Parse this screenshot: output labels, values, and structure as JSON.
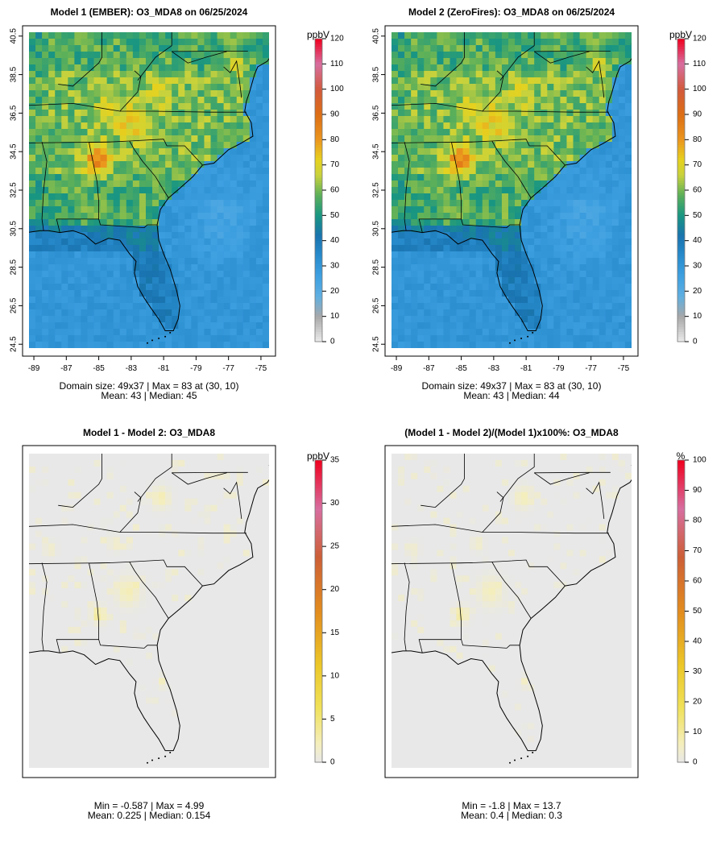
{
  "chart_data": [
    {
      "type": "heatmap",
      "title": "Model 1 (EMBER): O3_MDA8 on 06/25/2024",
      "colorbar": {
        "label": "ppbV",
        "ticks": [
          "0",
          "10",
          "20",
          "30",
          "40",
          "50",
          "60",
          "70",
          "80",
          "90",
          "100",
          "110",
          "120"
        ],
        "range": [
          0,
          120
        ],
        "palette": "ozone"
      },
      "xticks": [
        "-89",
        "-87",
        "-85",
        "-83",
        "-81",
        "-79",
        "-77",
        "-75"
      ],
      "yticks": [
        "24.5",
        "26.5",
        "28.5",
        "30.5",
        "32.5",
        "34.5",
        "36.5",
        "38.5",
        "40.5"
      ],
      "xlim": [
        -89.3,
        -74.5
      ],
      "ylim": [
        24.3,
        40.7
      ],
      "stats_line1": "Domain size: 49x37 | Max = 83 at (30, 10)",
      "stats_line2": "Mean: 43 |  Median: 45",
      "field": {
        "kind": "ozone",
        "seed": 11
      }
    },
    {
      "type": "heatmap",
      "title": "Model 2 (ZeroFires): O3_MDA8 on 06/25/2024",
      "colorbar": {
        "label": "ppbV",
        "ticks": [
          "0",
          "10",
          "20",
          "30",
          "40",
          "50",
          "60",
          "70",
          "80",
          "90",
          "100",
          "110",
          "120"
        ],
        "range": [
          0,
          120
        ],
        "palette": "ozone"
      },
      "xticks": [
        "-89",
        "-87",
        "-85",
        "-83",
        "-81",
        "-79",
        "-77",
        "-75"
      ],
      "yticks": [
        "24.5",
        "26.5",
        "28.5",
        "30.5",
        "32.5",
        "34.5",
        "36.5",
        "38.5",
        "40.5"
      ],
      "xlim": [
        -89.3,
        -74.5
      ],
      "ylim": [
        24.3,
        40.7
      ],
      "stats_line1": "Domain size: 49x37 | Max = 83 at (30, 10)",
      "stats_line2": "Mean: 43 |  Median: 44",
      "field": {
        "kind": "ozone",
        "seed": 11
      }
    },
    {
      "type": "heatmap",
      "title": "Model 1 - Model 2: O3_MDA8",
      "colorbar": {
        "label": "ppbV",
        "ticks": [
          "0",
          "5",
          "10",
          "15",
          "20",
          "25",
          "30",
          "35"
        ],
        "range": [
          0,
          35
        ],
        "palette": "diff"
      },
      "stats_line1": "Min = -0.587 | Max = 4.99",
      "stats_line2": "Mean: 0.225 |  Median: 0.154",
      "field": {
        "kind": "diff",
        "seed": 23
      }
    },
    {
      "type": "heatmap",
      "title": "(Model 1 - Model 2)/(Model 1)x100%: O3_MDA8",
      "colorbar": {
        "label": "%",
        "ticks": [
          "0",
          "10",
          "20",
          "30",
          "40",
          "50",
          "60",
          "70",
          "80",
          "90",
          "100"
        ],
        "range": [
          0,
          100
        ],
        "palette": "diff"
      },
      "stats_line1": "Min = -1.8 | Max = 13.7",
      "stats_line2": "Mean: 0.4 |  Median: 0.3",
      "field": {
        "kind": "pct",
        "seed": 37
      }
    }
  ]
}
